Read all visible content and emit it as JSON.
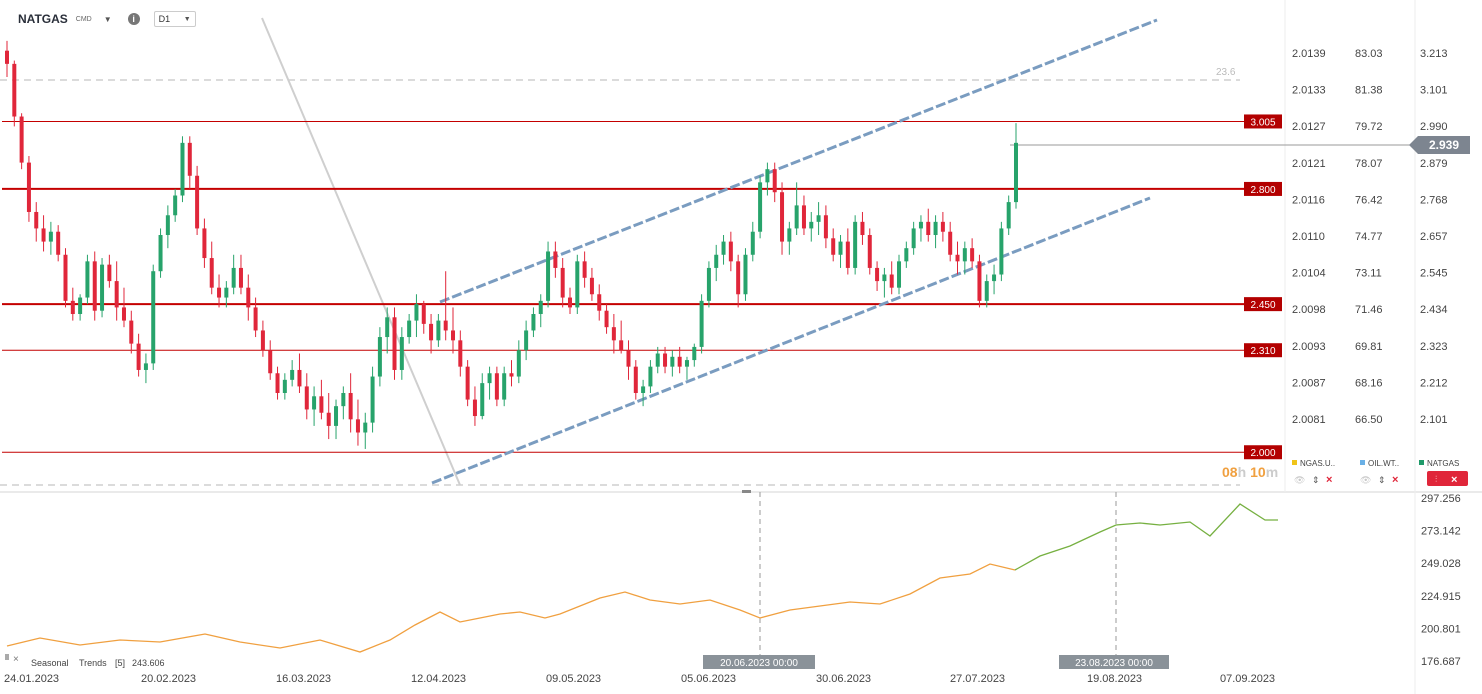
{
  "header": {
    "symbol": "NATGAS",
    "symbol_sub": "CMD",
    "timeframe": "D1"
  },
  "price_axes": {
    "axis1": [
      "2.0139",
      "2.0133",
      "2.0127",
      "2.0121",
      "2.0116",
      "2.0110",
      "2.0104",
      "2.0098",
      "2.0093",
      "2.0087",
      "2.0081"
    ],
    "axis2": [
      "83.03",
      "81.38",
      "79.72",
      "78.07",
      "76.42",
      "74.77",
      "73.11",
      "71.46",
      "69.81",
      "68.16",
      "66.50"
    ],
    "axis3": [
      "3.213",
      "3.101",
      "2.990",
      "2.879",
      "2.768",
      "2.657",
      "2.545",
      "2.434",
      "2.323",
      "2.212",
      "2.101"
    ]
  },
  "current_price": "2.939",
  "levels": [
    {
      "label": "3.005",
      "value": 3.005
    },
    {
      "label": "2.800",
      "value": 2.8
    },
    {
      "label": "2.450",
      "value": 2.45
    },
    {
      "label": "2.310",
      "value": 2.31
    },
    {
      "label": "2.000",
      "value": 2.0
    }
  ],
  "fib_label": "23.6",
  "countdown": {
    "h": "08",
    "hl": "h",
    "m": "10",
    "ml": "m"
  },
  "legend": [
    {
      "name": "NGAS.U..",
      "color": "#f0c419"
    },
    {
      "name": "OIL.WT..",
      "color": "#6ab0e6"
    },
    {
      "name": "NATGAS",
      "color": "#1f9a6a"
    }
  ],
  "indicator": {
    "name": "Seasonal",
    "name2": "Trends",
    "param": "[5]",
    "value": "243.606",
    "axis": [
      "297.256",
      "273.142",
      "249.028",
      "224.915",
      "200.801",
      "176.687"
    ]
  },
  "time_axis": [
    "24.01.2023",
    "20.02.2023",
    "16.03.2023",
    "12.04.2023",
    "09.05.2023",
    "05.06.2023",
    "30.06.2023",
    "27.07.2023",
    "19.08.2023",
    "07.09.2023"
  ],
  "crosshair_labels": [
    "20.06.2023 00:00",
    "23.08.2023 00:00"
  ],
  "colors": {
    "bull": "#27a36b",
    "bear": "#e0263a",
    "level": "#c40000",
    "channel": "#7a9cc0",
    "season_past": "#f0a040",
    "season_future": "#76b041"
  },
  "chart_data": {
    "type": "candlestick",
    "title": "",
    "y_range": [
      2.0,
      3.22
    ],
    "candles": [
      [
        3.22,
        3.25,
        3.14,
        3.18
      ],
      [
        3.18,
        3.19,
        2.99,
        3.02
      ],
      [
        3.02,
        3.03,
        2.86,
        2.88
      ],
      [
        2.88,
        2.9,
        2.7,
        2.73
      ],
      [
        2.73,
        2.76,
        2.64,
        2.68
      ],
      [
        2.68,
        2.72,
        2.61,
        2.64
      ],
      [
        2.64,
        2.7,
        2.6,
        2.67
      ],
      [
        2.67,
        2.69,
        2.58,
        2.6
      ],
      [
        2.6,
        2.62,
        2.44,
        2.46
      ],
      [
        2.46,
        2.5,
        2.4,
        2.42
      ],
      [
        2.42,
        2.48,
        2.4,
        2.47
      ],
      [
        2.47,
        2.6,
        2.45,
        2.58
      ],
      [
        2.58,
        2.61,
        2.4,
        2.43
      ],
      [
        2.43,
        2.59,
        2.41,
        2.57
      ],
      [
        2.57,
        2.6,
        2.5,
        2.52
      ],
      [
        2.52,
        2.58,
        2.4,
        2.44
      ],
      [
        2.44,
        2.5,
        2.38,
        2.4
      ],
      [
        2.4,
        2.43,
        2.3,
        2.33
      ],
      [
        2.33,
        2.36,
        2.23,
        2.25
      ],
      [
        2.25,
        2.3,
        2.21,
        2.27
      ],
      [
        2.27,
        2.57,
        2.25,
        2.55
      ],
      [
        2.55,
        2.68,
        2.53,
        2.66
      ],
      [
        2.66,
        2.75,
        2.62,
        2.72
      ],
      [
        2.72,
        2.8,
        2.7,
        2.78
      ],
      [
        2.78,
        2.96,
        2.76,
        2.94
      ],
      [
        2.94,
        2.96,
        2.8,
        2.84
      ],
      [
        2.84,
        2.87,
        2.66,
        2.68
      ],
      [
        2.68,
        2.71,
        2.56,
        2.59
      ],
      [
        2.59,
        2.64,
        2.48,
        2.5
      ],
      [
        2.5,
        2.54,
        2.44,
        2.47
      ],
      [
        2.47,
        2.52,
        2.44,
        2.5
      ],
      [
        2.5,
        2.6,
        2.48,
        2.56
      ],
      [
        2.56,
        2.6,
        2.48,
        2.5
      ],
      [
        2.5,
        2.54,
        2.4,
        2.44
      ],
      [
        2.44,
        2.47,
        2.35,
        2.37
      ],
      [
        2.37,
        2.4,
        2.29,
        2.31
      ],
      [
        2.31,
        2.34,
        2.22,
        2.24
      ],
      [
        2.24,
        2.26,
        2.16,
        2.18
      ],
      [
        2.18,
        2.24,
        2.16,
        2.22
      ],
      [
        2.22,
        2.28,
        2.2,
        2.25
      ],
      [
        2.25,
        2.3,
        2.18,
        2.2
      ],
      [
        2.2,
        2.24,
        2.1,
        2.13
      ],
      [
        2.13,
        2.2,
        2.08,
        2.17
      ],
      [
        2.17,
        2.22,
        2.1,
        2.12
      ],
      [
        2.12,
        2.18,
        2.04,
        2.08
      ],
      [
        2.08,
        2.16,
        2.04,
        2.14
      ],
      [
        2.14,
        2.2,
        2.1,
        2.18
      ],
      [
        2.18,
        2.24,
        2.06,
        2.1
      ],
      [
        2.1,
        2.16,
        2.02,
        2.06
      ],
      [
        2.06,
        2.12,
        2.01,
        2.09
      ],
      [
        2.09,
        2.26,
        2.06,
        2.23
      ],
      [
        2.23,
        2.38,
        2.2,
        2.35
      ],
      [
        2.35,
        2.44,
        2.3,
        2.41
      ],
      [
        2.41,
        2.44,
        2.22,
        2.25
      ],
      [
        2.25,
        2.38,
        2.22,
        2.35
      ],
      [
        2.35,
        2.42,
        2.33,
        2.4
      ],
      [
        2.4,
        2.48,
        2.35,
        2.45
      ],
      [
        2.45,
        2.46,
        2.36,
        2.39
      ],
      [
        2.39,
        2.42,
        2.3,
        2.34
      ],
      [
        2.34,
        2.42,
        2.32,
        2.4
      ],
      [
        2.4,
        2.55,
        2.34,
        2.37
      ],
      [
        2.37,
        2.44,
        2.3,
        2.34
      ],
      [
        2.34,
        2.37,
        2.23,
        2.26
      ],
      [
        2.26,
        2.28,
        2.14,
        2.16
      ],
      [
        2.16,
        2.2,
        2.08,
        2.11
      ],
      [
        2.11,
        2.24,
        2.1,
        2.21
      ],
      [
        2.21,
        2.26,
        2.16,
        2.24
      ],
      [
        2.24,
        2.26,
        2.14,
        2.16
      ],
      [
        2.16,
        2.26,
        2.14,
        2.24
      ],
      [
        2.24,
        2.28,
        2.2,
        2.23
      ],
      [
        2.23,
        2.34,
        2.21,
        2.31
      ],
      [
        2.31,
        2.4,
        2.28,
        2.37
      ],
      [
        2.37,
        2.44,
        2.35,
        2.42
      ],
      [
        2.42,
        2.48,
        2.38,
        2.46
      ],
      [
        2.46,
        2.64,
        2.44,
        2.61
      ],
      [
        2.61,
        2.64,
        2.53,
        2.56
      ],
      [
        2.56,
        2.59,
        2.44,
        2.47
      ],
      [
        2.47,
        2.5,
        2.42,
        2.44
      ],
      [
        2.44,
        2.6,
        2.42,
        2.58
      ],
      [
        2.58,
        2.61,
        2.5,
        2.53
      ],
      [
        2.53,
        2.56,
        2.46,
        2.48
      ],
      [
        2.48,
        2.51,
        2.4,
        2.43
      ],
      [
        2.43,
        2.45,
        2.36,
        2.38
      ],
      [
        2.38,
        2.42,
        2.3,
        2.34
      ],
      [
        2.34,
        2.4,
        2.3,
        2.31
      ],
      [
        2.31,
        2.34,
        2.22,
        2.26
      ],
      [
        2.26,
        2.28,
        2.16,
        2.18
      ],
      [
        2.18,
        2.22,
        2.14,
        2.2
      ],
      [
        2.2,
        2.28,
        2.18,
        2.26
      ],
      [
        2.26,
        2.32,
        2.24,
        2.3
      ],
      [
        2.3,
        2.32,
        2.24,
        2.26
      ],
      [
        2.26,
        2.31,
        2.23,
        2.29
      ],
      [
        2.29,
        2.32,
        2.24,
        2.26
      ],
      [
        2.26,
        2.29,
        2.22,
        2.28
      ],
      [
        2.28,
        2.33,
        2.26,
        2.32
      ],
      [
        2.32,
        2.48,
        2.3,
        2.46
      ],
      [
        2.46,
        2.58,
        2.44,
        2.56
      ],
      [
        2.56,
        2.63,
        2.52,
        2.6
      ],
      [
        2.6,
        2.66,
        2.57,
        2.64
      ],
      [
        2.64,
        2.67,
        2.55,
        2.58
      ],
      [
        2.58,
        2.6,
        2.44,
        2.48
      ],
      [
        2.48,
        2.62,
        2.46,
        2.6
      ],
      [
        2.6,
        2.7,
        2.58,
        2.67
      ],
      [
        2.67,
        2.84,
        2.65,
        2.82
      ],
      [
        2.82,
        2.88,
        2.78,
        2.86
      ],
      [
        2.86,
        2.88,
        2.76,
        2.79
      ],
      [
        2.79,
        2.82,
        2.6,
        2.64
      ],
      [
        2.64,
        2.7,
        2.6,
        2.68
      ],
      [
        2.68,
        2.82,
        2.66,
        2.75
      ],
      [
        2.75,
        2.78,
        2.66,
        2.68
      ],
      [
        2.68,
        2.73,
        2.64,
        2.7
      ],
      [
        2.7,
        2.76,
        2.66,
        2.72
      ],
      [
        2.72,
        2.75,
        2.62,
        2.65
      ],
      [
        2.65,
        2.68,
        2.58,
        2.6
      ],
      [
        2.6,
        2.66,
        2.56,
        2.64
      ],
      [
        2.64,
        2.68,
        2.54,
        2.56
      ],
      [
        2.56,
        2.72,
        2.54,
        2.7
      ],
      [
        2.7,
        2.73,
        2.63,
        2.66
      ],
      [
        2.66,
        2.68,
        2.54,
        2.56
      ],
      [
        2.56,
        2.58,
        2.49,
        2.52
      ],
      [
        2.52,
        2.56,
        2.47,
        2.54
      ],
      [
        2.54,
        2.58,
        2.48,
        2.5
      ],
      [
        2.5,
        2.6,
        2.48,
        2.58
      ],
      [
        2.58,
        2.64,
        2.56,
        2.62
      ],
      [
        2.62,
        2.7,
        2.6,
        2.68
      ],
      [
        2.68,
        2.72,
        2.64,
        2.7
      ],
      [
        2.7,
        2.74,
        2.64,
        2.66
      ],
      [
        2.66,
        2.72,
        2.62,
        2.7
      ],
      [
        2.7,
        2.73,
        2.64,
        2.67
      ],
      [
        2.67,
        2.7,
        2.58,
        2.6
      ],
      [
        2.6,
        2.64,
        2.54,
        2.58
      ],
      [
        2.58,
        2.64,
        2.54,
        2.62
      ],
      [
        2.62,
        2.65,
        2.56,
        2.58
      ],
      [
        2.58,
        2.6,
        2.44,
        2.46
      ],
      [
        2.46,
        2.54,
        2.44,
        2.52
      ],
      [
        2.52,
        2.57,
        2.48,
        2.54
      ],
      [
        2.54,
        2.7,
        2.52,
        2.68
      ],
      [
        2.68,
        2.78,
        2.66,
        2.76
      ],
      [
        2.76,
        3.0,
        2.74,
        2.94
      ]
    ]
  }
}
